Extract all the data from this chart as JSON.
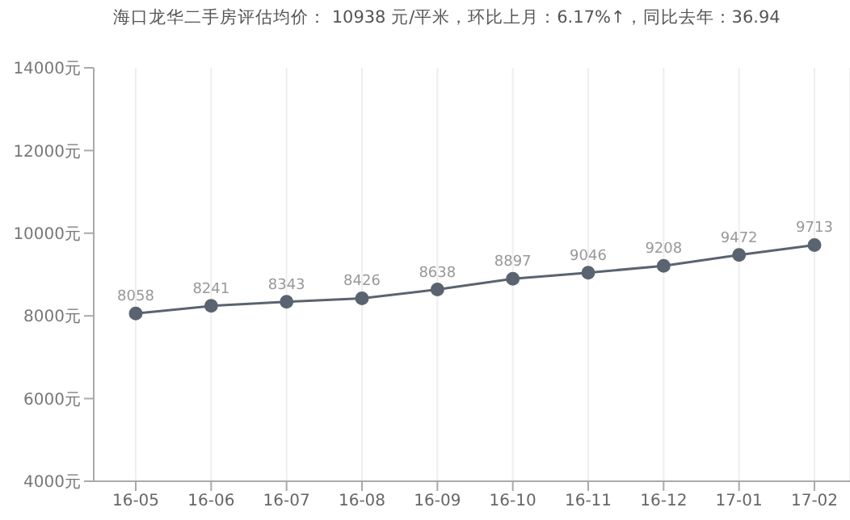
{
  "chart_data": {
    "type": "line",
    "title": "海口龙华二手房评估均价： 10938 元/平米，环比上月：6.17%↑，同比去年：36.94",
    "categories": [
      "16-05",
      "16-06",
      "16-07",
      "16-08",
      "16-09",
      "16-10",
      "16-11",
      "16-12",
      "17-01",
      "17-02"
    ],
    "series": [
      {
        "color": "#5a6470",
        "values": [
          8058,
          8241,
          8343,
          8426,
          8638,
          8897,
          9046,
          9208,
          9472,
          9713
        ]
      }
    ],
    "ylim": [
      4000,
      14000
    ],
    "yticks": [
      {
        "value": 4000,
        "label": "4000元"
      },
      {
        "value": 6000,
        "label": "6000元"
      },
      {
        "value": 8000,
        "label": "8000元"
      },
      {
        "value": 10000,
        "label": "10000元"
      },
      {
        "value": 12000,
        "label": "12000元"
      },
      {
        "value": 14000,
        "label": "14000元"
      }
    ],
    "grid": "x",
    "marker": "circle",
    "data_labels": true
  }
}
